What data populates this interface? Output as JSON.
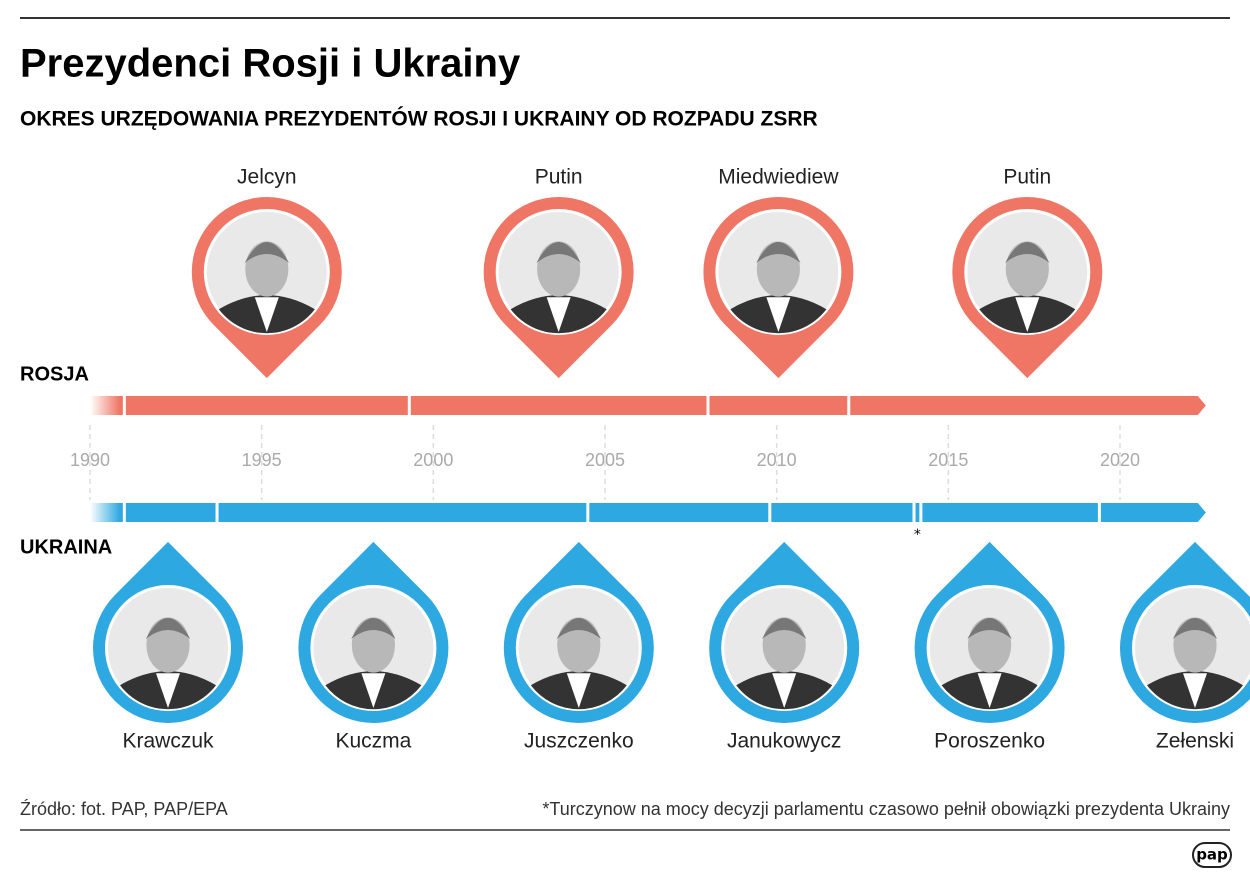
{
  "header": {
    "title": "Prezydenci Rosji i Ukrainy",
    "subtitle": "OKRES URZĘDOWANIA PREZYDENTÓW ROSJI I UKRAINY OD ROZPADU ZSRR"
  },
  "axis": {
    "range": [
      1990,
      2022.5
    ],
    "ticks": [
      1990,
      1995,
      2000,
      2005,
      2010,
      2015,
      2020
    ]
  },
  "russia": {
    "label": "ROSJA",
    "color": "#ef7564",
    "boundaries": [
      1991,
      1999.3,
      2008,
      2012.1
    ],
    "presidents": [
      {
        "name": "Jelcyn"
      },
      {
        "name": "Putin"
      },
      {
        "name": "Miedwiediew"
      },
      {
        "name": "Putin"
      }
    ]
  },
  "ukraine": {
    "label": "UKRAINA",
    "color": "#2ea8e0",
    "boundaries": [
      1991,
      1993.7,
      2004.5,
      2009.8,
      2014,
      2014.2,
      2019.4
    ],
    "marker": "*",
    "presidents": [
      {
        "name": "Krawczuk"
      },
      {
        "name": "Kuczma"
      },
      {
        "name": "Juszczenko"
      },
      {
        "name": "Janukowycz"
      },
      {
        "name": "Poroszenko"
      },
      {
        "name": "Zełenski"
      }
    ]
  },
  "footer": {
    "source": "Źródło: fot. PAP, PAP/EPA",
    "note": "*Turczynow na mocy decyzji parlamentu czasowo pełnił obowiązki prezydenta Ukrainy",
    "logo": "pap"
  }
}
